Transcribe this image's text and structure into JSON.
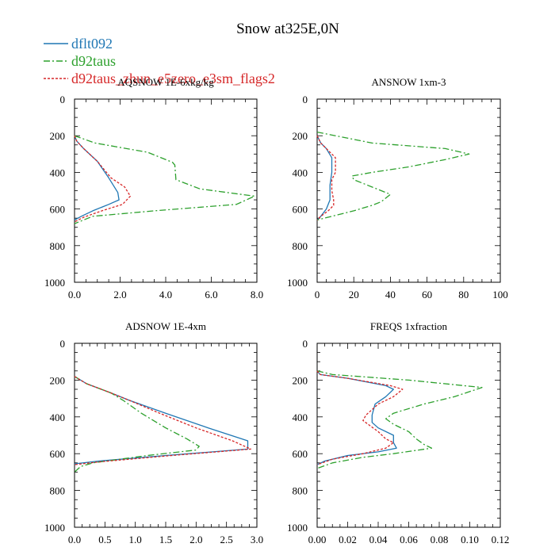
{
  "title": "Snow at325E,0N",
  "legend": [
    {
      "label": "dflt092",
      "color": "#1f77b4",
      "dash": "solid"
    },
    {
      "label": "d92taus",
      "color": "#2ca02c",
      "dash": "dashed"
    },
    {
      "label": "d92taus_zhun_e5zero_e3sm_flags2",
      "color": "#d62728",
      "dash": "dotted"
    }
  ],
  "chart_data": [
    {
      "type": "line",
      "title": "AQSNOW  1E-6xkg/kg",
      "xlim": [
        0,
        8
      ],
      "xticks": [
        "0.0",
        "2.0",
        "4.0",
        "6.0",
        "8.0"
      ],
      "xtick_values": [
        0,
        2,
        4,
        6,
        8
      ],
      "ylim": [
        1000,
        0
      ],
      "yticks": [
        "0",
        "200",
        "400",
        "600",
        "800",
        "1000"
      ],
      "ytick_values": [
        0,
        200,
        400,
        600,
        800,
        1000
      ],
      "series": [
        {
          "name": "dflt092",
          "points": [
            [
              0,
              200
            ],
            [
              0.1,
              230
            ],
            [
              0.4,
              270
            ],
            [
              1.0,
              340
            ],
            [
              1.5,
              430
            ],
            [
              1.9,
              510
            ],
            [
              1.95,
              550
            ],
            [
              1.5,
              575
            ],
            [
              0.8,
              610
            ],
            [
              0.3,
              640
            ],
            [
              0,
              660
            ]
          ]
        },
        {
          "name": "d92taus",
          "points": [
            [
              0,
              200
            ],
            [
              0.9,
              240
            ],
            [
              3.2,
              290
            ],
            [
              4.3,
              345
            ],
            [
              4.4,
              360
            ],
            [
              4.45,
              440
            ],
            [
              5.5,
              490
            ],
            [
              7.9,
              530
            ],
            [
              7.1,
              575
            ],
            [
              3.5,
              610
            ],
            [
              0.8,
              640
            ],
            [
              0,
              680
            ]
          ]
        },
        {
          "name": "d92taus_zhun_e5zero_e3sm_flags2",
          "points": [
            [
              0,
              200
            ],
            [
              0.1,
              230
            ],
            [
              0.4,
              270
            ],
            [
              1.0,
              340
            ],
            [
              1.6,
              430
            ],
            [
              2.2,
              480
            ],
            [
              2.45,
              530
            ],
            [
              2.1,
              575
            ],
            [
              1.2,
              610
            ],
            [
              0.4,
              645
            ],
            [
              0,
              670
            ]
          ]
        }
      ]
    },
    {
      "type": "line",
      "title": "ANSNOW  1xm-3",
      "xlim": [
        0,
        100
      ],
      "xticks": [
        "0",
        "20",
        "40",
        "60",
        "80",
        "100"
      ],
      "xtick_values": [
        0,
        20,
        40,
        60,
        80,
        100
      ],
      "ylim": [
        1000,
        0
      ],
      "yticks": [
        "0",
        "200",
        "400",
        "600",
        "800",
        "1000"
      ],
      "ytick_values": [
        0,
        200,
        400,
        600,
        800,
        1000
      ],
      "series": [
        {
          "name": "dflt092",
          "points": [
            [
              0,
              200
            ],
            [
              2,
              240
            ],
            [
              5,
              270
            ],
            [
              8,
              320
            ],
            [
              8,
              400
            ],
            [
              7,
              470
            ],
            [
              7,
              550
            ],
            [
              5,
              600
            ],
            [
              2,
              640
            ],
            [
              0,
              660
            ]
          ]
        },
        {
          "name": "d92taus",
          "points": [
            [
              0,
              180
            ],
            [
              10,
              200
            ],
            [
              30,
              240
            ],
            [
              70,
              270
            ],
            [
              83,
              300
            ],
            [
              70,
              330
            ],
            [
              50,
              370
            ],
            [
              30,
              400
            ],
            [
              19,
              420
            ],
            [
              20,
              440
            ],
            [
              30,
              480
            ],
            [
              40,
              520
            ],
            [
              35,
              560
            ],
            [
              30,
              580
            ],
            [
              20,
              610
            ],
            [
              8,
              640
            ],
            [
              0,
              660
            ]
          ]
        },
        {
          "name": "d92taus_zhun_e5zero_e3sm_flags2",
          "points": [
            [
              0,
              200
            ],
            [
              2,
              240
            ],
            [
              5,
              270
            ],
            [
              10,
              320
            ],
            [
              10,
              400
            ],
            [
              8,
              440
            ],
            [
              8,
              500
            ],
            [
              9,
              550
            ],
            [
              9,
              580
            ],
            [
              6,
              610
            ],
            [
              2,
              640
            ],
            [
              0,
              660
            ]
          ]
        }
      ]
    },
    {
      "type": "line",
      "title": "ADSNOW  1E-4xm",
      "xlim": [
        0,
        3
      ],
      "xticks": [
        "0.0",
        "0.5",
        "1.0",
        "1.5",
        "2.0",
        "2.5",
        "3.0"
      ],
      "xtick_values": [
        0,
        0.5,
        1.0,
        1.5,
        2.0,
        2.5,
        3.0
      ],
      "ylim": [
        1000,
        0
      ],
      "yticks": [
        "0",
        "200",
        "400",
        "600",
        "800",
        "1000"
      ],
      "ytick_values": [
        0,
        200,
        400,
        600,
        800,
        1000
      ],
      "series": [
        {
          "name": "dflt092",
          "points": [
            [
              0,
              180
            ],
            [
              0.2,
              220
            ],
            [
              0.6,
              270
            ],
            [
              0.9,
              310
            ],
            [
              1.5,
              380
            ],
            [
              2.2,
              460
            ],
            [
              2.85,
              530
            ],
            [
              2.85,
              575
            ],
            [
              1.5,
              610
            ],
            [
              0.4,
              640
            ],
            [
              0,
              655
            ]
          ]
        },
        {
          "name": "d92taus",
          "points": [
            [
              0,
              180
            ],
            [
              0.2,
              220
            ],
            [
              0.6,
              270
            ],
            [
              0.8,
              310
            ],
            [
              1.1,
              380
            ],
            [
              1.5,
              460
            ],
            [
              1.85,
              520
            ],
            [
              2.05,
              560
            ],
            [
              2.0,
              580
            ],
            [
              1.2,
              610
            ],
            [
              0.3,
              650
            ],
            [
              0.1,
              670
            ],
            [
              0,
              700
            ]
          ]
        },
        {
          "name": "d92taus_zhun_e5zero_e3sm_flags2",
          "points": [
            [
              0,
              180
            ],
            [
              0.2,
              220
            ],
            [
              0.6,
              270
            ],
            [
              0.9,
              310
            ],
            [
              1.4,
              380
            ],
            [
              2.0,
              460
            ],
            [
              2.6,
              530
            ],
            [
              2.9,
              575
            ],
            [
              1.6,
              610
            ],
            [
              0.4,
              645
            ],
            [
              0,
              660
            ]
          ]
        }
      ]
    },
    {
      "type": "line",
      "title": "FREQS  1xfraction",
      "xlim": [
        0,
        0.12
      ],
      "xticks": [
        "0.00",
        "0.02",
        "0.04",
        "0.06",
        "0.08",
        "0.10",
        "0.12"
      ],
      "xtick_values": [
        0,
        0.02,
        0.04,
        0.06,
        0.08,
        0.1,
        0.12
      ],
      "ylim": [
        1000,
        0
      ],
      "yticks": [
        "0",
        "200",
        "400",
        "600",
        "800",
        "1000"
      ],
      "ytick_values": [
        0,
        200,
        400,
        600,
        800,
        1000
      ],
      "series": [
        {
          "name": "dflt092",
          "points": [
            [
              0,
              150
            ],
            [
              0.002,
              170
            ],
            [
              0.02,
              190
            ],
            [
              0.045,
              230
            ],
            [
              0.05,
              250
            ],
            [
              0.045,
              290
            ],
            [
              0.038,
              330
            ],
            [
              0.036,
              390
            ],
            [
              0.036,
              430
            ],
            [
              0.04,
              460
            ],
            [
              0.05,
              500
            ],
            [
              0.05,
              540
            ],
            [
              0.052,
              570
            ],
            [
              0.04,
              590
            ],
            [
              0.02,
              610
            ],
            [
              0.005,
              640
            ],
            [
              0,
              660
            ]
          ]
        },
        {
          "name": "d92taus",
          "points": [
            [
              0,
              150
            ],
            [
              0.01,
              170
            ],
            [
              0.06,
              200
            ],
            [
              0.108,
              240
            ],
            [
              0.09,
              290
            ],
            [
              0.07,
              330
            ],
            [
              0.05,
              380
            ],
            [
              0.045,
              410
            ],
            [
              0.05,
              440
            ],
            [
              0.06,
              480
            ],
            [
              0.065,
              520
            ],
            [
              0.07,
              550
            ],
            [
              0.075,
              570
            ],
            [
              0.05,
              600
            ],
            [
              0.03,
              620
            ],
            [
              0.01,
              650
            ],
            [
              0,
              680
            ]
          ]
        },
        {
          "name": "d92taus_zhun_e5zero_e3sm_flags2",
          "points": [
            [
              0,
              150
            ],
            [
              0.002,
              170
            ],
            [
              0.02,
              190
            ],
            [
              0.048,
              230
            ],
            [
              0.056,
              250
            ],
            [
              0.05,
              290
            ],
            [
              0.04,
              330
            ],
            [
              0.032,
              390
            ],
            [
              0.03,
              420
            ],
            [
              0.035,
              450
            ],
            [
              0.04,
              480
            ],
            [
              0.045,
              520
            ],
            [
              0.05,
              540
            ],
            [
              0.045,
              570
            ],
            [
              0.03,
              600
            ],
            [
              0.01,
              630
            ],
            [
              0,
              660
            ]
          ]
        }
      ]
    }
  ]
}
